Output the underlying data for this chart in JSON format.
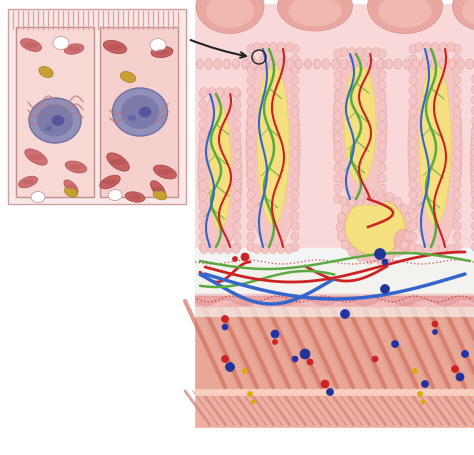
{
  "background_color": "#ffffff",
  "colors": {
    "pink_surface": "#e8a0a0",
    "pink_light": "#f5c5c5",
    "pink_medium": "#f0a8a8",
    "pink_dark": "#d88888",
    "yellow_gland": "#f5e080",
    "yellow_light": "#faf0b0",
    "green_fiber": "#5aaa40",
    "red_vessel": "#cc2222",
    "blue_vessel": "#3366cc",
    "submucosa_bg": "#f8f0e0",
    "muscularis_pink": "#e8a898",
    "muscularis_stripe": "#d07070",
    "muscularis_light": "#f0b8a8",
    "serosa_pink": "#f0b0a0",
    "cell_fill1": "#f5d0c8",
    "cell_fill2": "#f0c8c0",
    "nucleus_blue": "#8888bb",
    "nucleus_dark": "#6060a0",
    "mito_red": "#cc6060",
    "granule_yellow": "#c8a030",
    "white_vacuole": "#ffffff",
    "arrow_color": "#222222",
    "wavy_red": "#cc4444",
    "dot_blue": "#223399",
    "dot_red": "#cc2222",
    "dot_yellow": "#ddaa00",
    "lavender_layer": "#e8d8f0",
    "pink_mucosa": "#f8d8d8"
  }
}
